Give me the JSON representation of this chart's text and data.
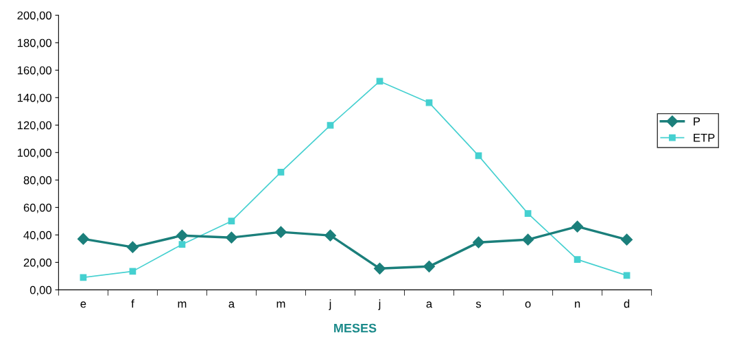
{
  "chart_data": {
    "type": "line",
    "xlabel": "MESES",
    "categories": [
      "e",
      "f",
      "m",
      "a",
      "m",
      "j",
      "j",
      "a",
      "s",
      "o",
      "n",
      "d"
    ],
    "series": [
      {
        "name": "P",
        "color": "#1b7f7b",
        "marker": "diamond",
        "values": [
          37.1,
          31.1,
          39.6,
          38.1,
          42.1,
          39.6,
          15.5,
          17.0,
          34.6,
          36.6,
          46.1,
          36.6
        ]
      },
      {
        "name": "ETP",
        "color": "#45d0d0",
        "marker": "square",
        "values": [
          9.0,
          13.5,
          33.1,
          50.1,
          85.7,
          119.8,
          151.9,
          136.3,
          97.7,
          55.6,
          22.1,
          10.5
        ]
      }
    ],
    "ylim": [
      0,
      200
    ],
    "yticks": [
      {
        "value": 0,
        "label": "0,00"
      },
      {
        "value": 20,
        "label": "20,00"
      },
      {
        "value": 40,
        "label": "40,00"
      },
      {
        "value": 60,
        "label": "60,00"
      },
      {
        "value": 80,
        "label": "80,00"
      },
      {
        "value": 100,
        "label": "100,00"
      },
      {
        "value": 120,
        "label": "120,00"
      },
      {
        "value": 140,
        "label": "140,00"
      },
      {
        "value": 160,
        "label": "160,00"
      },
      {
        "value": 180,
        "label": "180,00"
      },
      {
        "value": 200,
        "label": "200,00"
      }
    ],
    "grid": false,
    "legend": "right"
  }
}
